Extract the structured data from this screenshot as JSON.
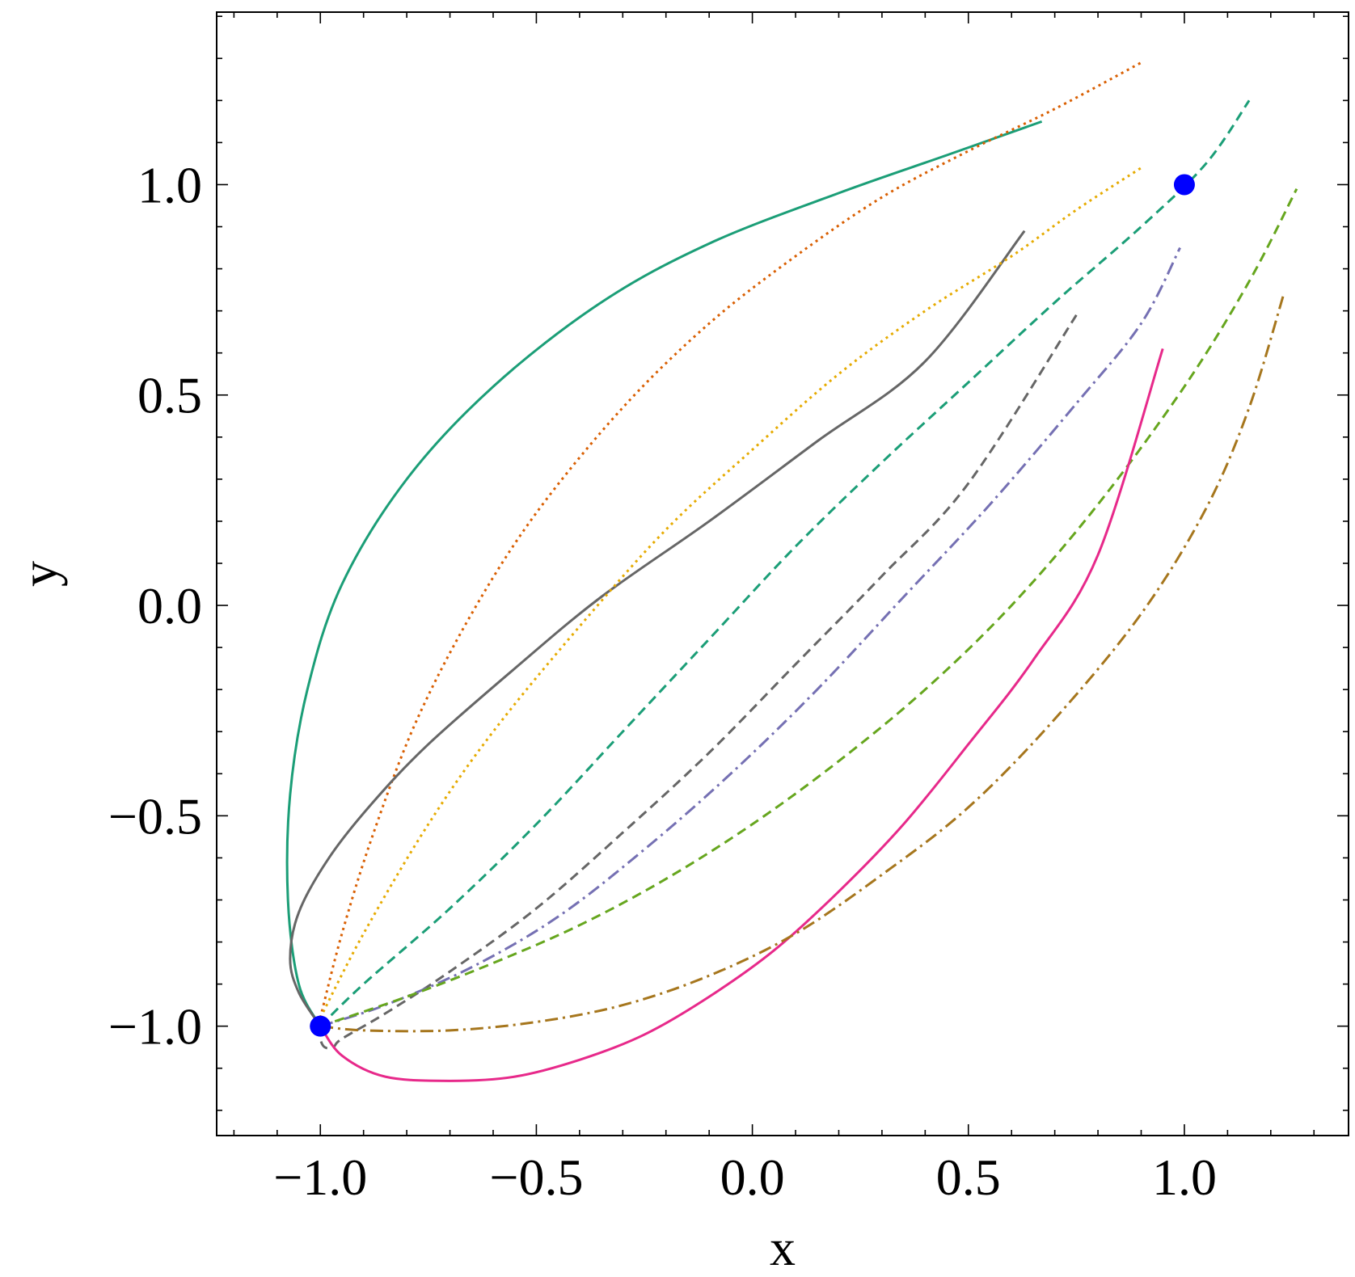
{
  "chart_data": {
    "type": "line",
    "title": "",
    "xlabel": "x",
    "ylabel": "y",
    "xlim": [
      -1.24,
      1.38
    ],
    "ylim": [
      -1.26,
      1.41
    ],
    "xticks": [
      -1.0,
      -0.5,
      0.0,
      0.5,
      1.0
    ],
    "yticks": [
      -1.0,
      -0.5,
      0.0,
      0.5,
      1.0
    ],
    "xtick_labels": [
      "−1.0",
      "−0.5",
      "0.0",
      "0.5",
      "1.0"
    ],
    "ytick_labels": [
      "−1.0",
      "−0.5",
      "0.0",
      "0.5",
      "1.0"
    ],
    "grid": false,
    "legend": "none",
    "series": [
      {
        "color": "#1b9e77",
        "style": "solid",
        "x": [
          -1.0,
          -1.05,
          -1.075,
          -1.07,
          -1.03,
          -0.95,
          -0.8,
          -0.6,
          -0.35,
          -0.1,
          0.2,
          0.45,
          0.67
        ],
        "y": [
          -1.0,
          -0.9,
          -0.7,
          -0.45,
          -0.2,
          0.05,
          0.3,
          0.52,
          0.72,
          0.86,
          0.98,
          1.07,
          1.15
        ]
      },
      {
        "color": "#d95f02",
        "style": "dotted",
        "x": [
          -1.0,
          -0.95,
          -0.88,
          -0.78,
          -0.65,
          -0.5,
          -0.3,
          -0.1,
          0.1,
          0.3,
          0.5,
          0.7,
          0.9
        ],
        "y": [
          -0.98,
          -0.78,
          -0.55,
          -0.28,
          -0.02,
          0.22,
          0.47,
          0.67,
          0.83,
          0.97,
          1.08,
          1.18,
          1.29
        ]
      },
      {
        "color": "#666666",
        "style": "solid",
        "x": [
          -1.0,
          -1.05,
          -1.07,
          -1.05,
          -0.98,
          -0.88,
          -0.75,
          -0.55,
          -0.35,
          -0.1,
          0.15,
          0.4,
          0.63
        ],
        "y": [
          -1.0,
          -0.92,
          -0.84,
          -0.73,
          -0.6,
          -0.47,
          -0.33,
          -0.15,
          0.02,
          0.2,
          0.39,
          0.58,
          0.89
        ]
      },
      {
        "color": "#e6ab02",
        "style": "dotted",
        "x": [
          -1.0,
          -0.9,
          -0.75,
          -0.6,
          -0.4,
          -0.2,
          0.0,
          0.2,
          0.4,
          0.6,
          0.75,
          0.9
        ],
        "y": [
          -0.98,
          -0.78,
          -0.52,
          -0.3,
          -0.05,
          0.18,
          0.37,
          0.55,
          0.7,
          0.83,
          0.94,
          1.04
        ]
      },
      {
        "color": "#1b9e77",
        "style": "dashed",
        "x": [
          -1.0,
          -0.9,
          -0.7,
          -0.5,
          -0.3,
          -0.1,
          0.1,
          0.3,
          0.5,
          0.7,
          0.9,
          1.05,
          1.15
        ],
        "y": [
          -1.0,
          -0.9,
          -0.72,
          -0.52,
          -0.3,
          -0.08,
          0.14,
          0.34,
          0.53,
          0.72,
          0.9,
          1.05,
          1.2
        ]
      },
      {
        "color": "#666666",
        "style": "dashed",
        "x": [
          -1.0,
          -1.0,
          -0.99,
          -0.97,
          -0.95,
          -0.85,
          -0.7,
          -0.5,
          -0.3,
          -0.1,
          0.1,
          0.3,
          0.5,
          0.75
        ],
        "y": [
          -1.0,
          -1.03,
          -1.05,
          -1.05,
          -1.03,
          -0.97,
          -0.87,
          -0.72,
          -0.54,
          -0.35,
          -0.14,
          0.07,
          0.29,
          0.69
        ]
      },
      {
        "color": "#7570b3",
        "style": "dashdot",
        "x": [
          -1.0,
          -0.85,
          -0.65,
          -0.45,
          -0.25,
          -0.05,
          0.15,
          0.35,
          0.55,
          0.75,
          0.9,
          0.99
        ],
        "y": [
          -1.0,
          -0.95,
          -0.86,
          -0.74,
          -0.58,
          -0.4,
          -0.2,
          0.02,
          0.24,
          0.48,
          0.67,
          0.85
        ]
      },
      {
        "color": "#66a61e",
        "style": "dashed",
        "x": [
          -1.0,
          -0.8,
          -0.6,
          -0.4,
          -0.2,
          0.0,
          0.2,
          0.4,
          0.6,
          0.8,
          1.0,
          1.15,
          1.26
        ],
        "y": [
          -1.0,
          -0.93,
          -0.85,
          -0.76,
          -0.65,
          -0.52,
          -0.37,
          -0.2,
          0.0,
          0.24,
          0.52,
          0.77,
          0.99
        ]
      },
      {
        "color": "#e7298a",
        "style": "solid",
        "x": [
          -1.0,
          -0.95,
          -0.85,
          -0.7,
          -0.55,
          -0.4,
          -0.25,
          -0.1,
          0.05,
          0.2,
          0.35,
          0.5,
          0.65,
          0.8,
          0.95
        ],
        "y": [
          -1.0,
          -1.07,
          -1.12,
          -1.13,
          -1.12,
          -1.08,
          -1.02,
          -0.93,
          -0.82,
          -0.68,
          -0.52,
          -0.33,
          -0.13,
          0.12,
          0.61
        ]
      },
      {
        "color": "#a6761d",
        "style": "dashdot",
        "x": [
          -1.0,
          -0.9,
          -0.7,
          -0.5,
          -0.3,
          -0.1,
          0.1,
          0.3,
          0.5,
          0.7,
          0.9,
          1.05,
          1.15,
          1.23
        ],
        "y": [
          -1.0,
          -1.01,
          -1.01,
          -0.99,
          -0.95,
          -0.88,
          -0.78,
          -0.64,
          -0.48,
          -0.27,
          -0.02,
          0.23,
          0.47,
          0.74
        ]
      }
    ],
    "markers": [
      {
        "x": -1.0,
        "y": -1.0,
        "color": "#0000ff"
      },
      {
        "x": 1.0,
        "y": 1.0,
        "color": "#0000ff"
      }
    ]
  }
}
